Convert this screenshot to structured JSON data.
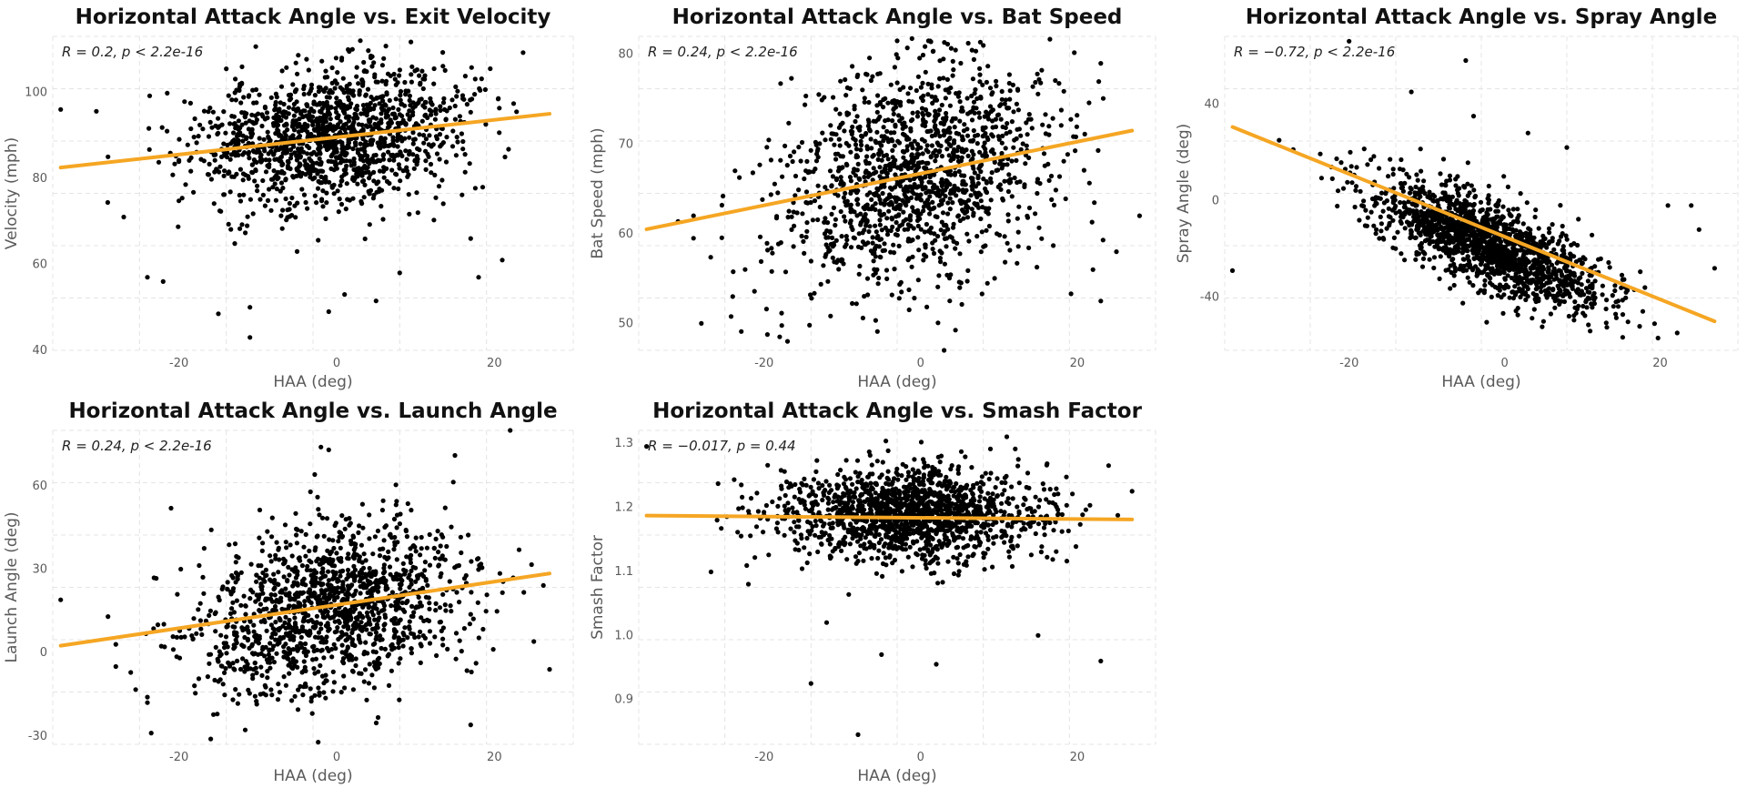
{
  "colors": {
    "points": "#000000",
    "fit_line": "#f5a623",
    "grid": "#e4e4e4",
    "background": "#ffffff"
  },
  "chart_data": [
    {
      "type": "scatter",
      "title": "Horizontal Attack Angle vs. Exit Velocity",
      "xlabel": "HAA (deg)",
      "ylabel": "Velocity (mph)",
      "annotation": "R = 0.2, p < 2.2e-16",
      "xlim": [
        -36,
        30
      ],
      "ylim": [
        40,
        113
      ],
      "x_ticks": [
        -20,
        0,
        20
      ],
      "y_ticks": [
        40,
        60,
        80,
        100
      ],
      "x_tick_labels": [
        "-20",
        "0",
        "20"
      ],
      "y_tick_labels": [
        "40",
        "60",
        "80",
        "100"
      ],
      "fit_line": {
        "x": [
          -35,
          27
        ],
        "y": [
          82.5,
          95
        ]
      },
      "cloud": {
        "x_mean": -1,
        "x_sd": 8.5,
        "y_mean": 90,
        "y_sd": 8,
        "slope": 0.2,
        "n": 1400,
        "seed": 11
      },
      "outliers": [
        [
          -35,
          96
        ],
        [
          -27,
          71
        ],
        [
          -15,
          48.5
        ],
        [
          -11,
          50
        ],
        [
          -11,
          43
        ],
        [
          -1,
          49
        ],
        [
          1,
          53
        ],
        [
          5,
          51.5
        ],
        [
          17,
          66
        ],
        [
          21,
          61
        ],
        [
          18,
          57
        ],
        [
          -29,
          85
        ],
        [
          -24,
          57
        ],
        [
          -22,
          56
        ],
        [
          3,
          112
        ],
        [
          2,
          110
        ],
        [
          8,
          58
        ]
      ],
      "grid": true
    },
    {
      "type": "scatter",
      "title": "Horizontal Attack Angle vs. Bat Speed",
      "xlabel": "HAA (deg)",
      "ylabel": "Bat Speed (mph)",
      "annotation": "R = 0.24, p < 2.2e-16",
      "xlim": [
        -36,
        30
      ],
      "ylim": [
        47,
        82
      ],
      "x_ticks": [
        -20,
        0,
        20
      ],
      "y_ticks": [
        50,
        60,
        70,
        80
      ],
      "x_tick_labels": [
        "-20",
        "0",
        "20"
      ],
      "y_tick_labels": [
        "50",
        "60",
        "70",
        "80"
      ],
      "fit_line": {
        "x": [
          -35,
          27
        ],
        "y": [
          60.5,
          71.5
        ]
      },
      "cloud": {
        "x_mean": -1,
        "x_sd": 8.5,
        "y_mean": 66.5,
        "y_sd": 6,
        "slope": 0.18,
        "n": 1400,
        "seed": 23
      },
      "outliers": [
        [
          -28,
          50
        ],
        [
          -29,
          59.5
        ],
        [
          -29,
          62
        ],
        [
          -24,
          53
        ],
        [
          -18,
          48.5
        ],
        [
          -17,
          48
        ],
        [
          3,
          47
        ],
        [
          -3,
          81.5
        ],
        [
          1,
          81.5
        ],
        [
          8,
          81
        ],
        [
          23,
          79
        ],
        [
          23,
          52.5
        ],
        [
          22,
          56
        ],
        [
          25,
          58
        ]
      ],
      "grid": true
    },
    {
      "type": "scatter",
      "title": "Horizontal Attack Angle vs. Spray Angle",
      "xlabel": "HAA (deg)",
      "ylabel": "Spray Angle (deg)",
      "annotation": "R = −0.72, p < 2.2e-16",
      "xlim": [
        -36,
        30
      ],
      "ylim": [
        -62,
        68
      ],
      "x_ticks": [
        -20,
        0,
        20
      ],
      "y_ticks": [
        -40,
        0,
        40
      ],
      "x_tick_labels": [
        "-20",
        "0",
        "20"
      ],
      "y_tick_labels": [
        "-40",
        "0",
        "40"
      ],
      "fit_line": {
        "x": [
          -35,
          27
        ],
        "y": [
          30.5,
          -50
        ]
      },
      "cloud": {
        "x_mean": -2,
        "x_sd": 7.5,
        "y_mean": -18,
        "y_sd": 9,
        "slope": -1.3,
        "n": 1600,
        "seed": 37
      },
      "outliers": [
        [
          -35,
          -29
        ],
        [
          -20,
          66
        ],
        [
          -5,
          58
        ],
        [
          -29,
          25
        ],
        [
          -12,
          45
        ],
        [
          27,
          -28
        ],
        [
          25,
          -12
        ],
        [
          21,
          -2
        ],
        [
          24,
          -2
        ],
        [
          -4,
          35
        ],
        [
          3,
          28
        ],
        [
          8,
          22
        ],
        [
          11,
          -54
        ],
        [
          5,
          -50
        ]
      ],
      "grid": true
    },
    {
      "type": "scatter",
      "title": "Horizontal Attack Angle vs. Launch Angle",
      "xlabel": "HAA (deg)",
      "ylabel": "Launch Angle (deg)",
      "annotation": "R = 0.24, p < 2.2e-16",
      "xlim": [
        -36,
        30
      ],
      "ylim": [
        -33,
        80
      ],
      "x_ticks": [
        -20,
        0,
        20
      ],
      "y_ticks": [
        -30,
        0,
        30,
        60
      ],
      "x_tick_labels": [
        "-20",
        "0",
        "20"
      ],
      "y_tick_labels": [
        "-30",
        "0",
        "30",
        "60"
      ],
      "fit_line": {
        "x": [
          -35,
          27
        ],
        "y": [
          2.5,
          28.5
        ]
      },
      "cloud": {
        "x_mean": -1,
        "x_sd": 8.5,
        "y_mean": 15,
        "y_sd": 15,
        "slope": 0.42,
        "n": 1400,
        "seed": 51
      },
      "outliers": [
        [
          -35,
          19
        ],
        [
          -28,
          3
        ],
        [
          -28,
          -5
        ],
        [
          -29,
          13
        ],
        [
          -24,
          -16
        ],
        [
          -24,
          -18
        ],
        [
          -21,
          52
        ],
        [
          -2,
          74
        ],
        [
          -1,
          73
        ],
        [
          22,
          80
        ],
        [
          15,
          71
        ],
        [
          27,
          -6
        ],
        [
          17,
          -26
        ],
        [
          25,
          4
        ]
      ],
      "grid": true
    },
    {
      "type": "scatter",
      "title": "Horizontal Attack Angle vs. Smash Factor",
      "xlabel": "HAA (deg)",
      "ylabel": "Smash Factor",
      "annotation": "R = −0.017, p = 0.44",
      "xlim": [
        -36,
        30
      ],
      "ylim": [
        0.83,
        1.32
      ],
      "x_ticks": [
        -20,
        0,
        20
      ],
      "y_ticks": [
        0.9,
        1.0,
        1.1,
        1.2,
        1.3
      ],
      "x_tick_labels": [
        "-20",
        "0",
        "20"
      ],
      "y_tick_labels": [
        "0.9",
        "1.0",
        "1.1",
        "1.2",
        "1.3"
      ],
      "fit_line": {
        "x": [
          -35,
          27
        ],
        "y": [
          1.187,
          1.181
        ]
      },
      "cloud": {
        "x_mean": -1,
        "x_sd": 8.5,
        "y_mean": 1.192,
        "y_sd": 0.035,
        "slope": 0,
        "n": 1500,
        "seed": 67
      },
      "outliers": [
        [
          -35,
          1.295
        ],
        [
          -26,
          1.18
        ],
        [
          -22,
          1.08
        ],
        [
          -8,
          0.845
        ],
        [
          -14,
          0.925
        ],
        [
          -5,
          0.97
        ],
        [
          2,
          0.955
        ],
        [
          23,
          0.96
        ],
        [
          24,
          1.265
        ],
        [
          11,
          1.31
        ],
        [
          27,
          1.225
        ],
        [
          -12,
          1.02
        ],
        [
          15,
          1.0
        ]
      ],
      "grid": true
    }
  ]
}
